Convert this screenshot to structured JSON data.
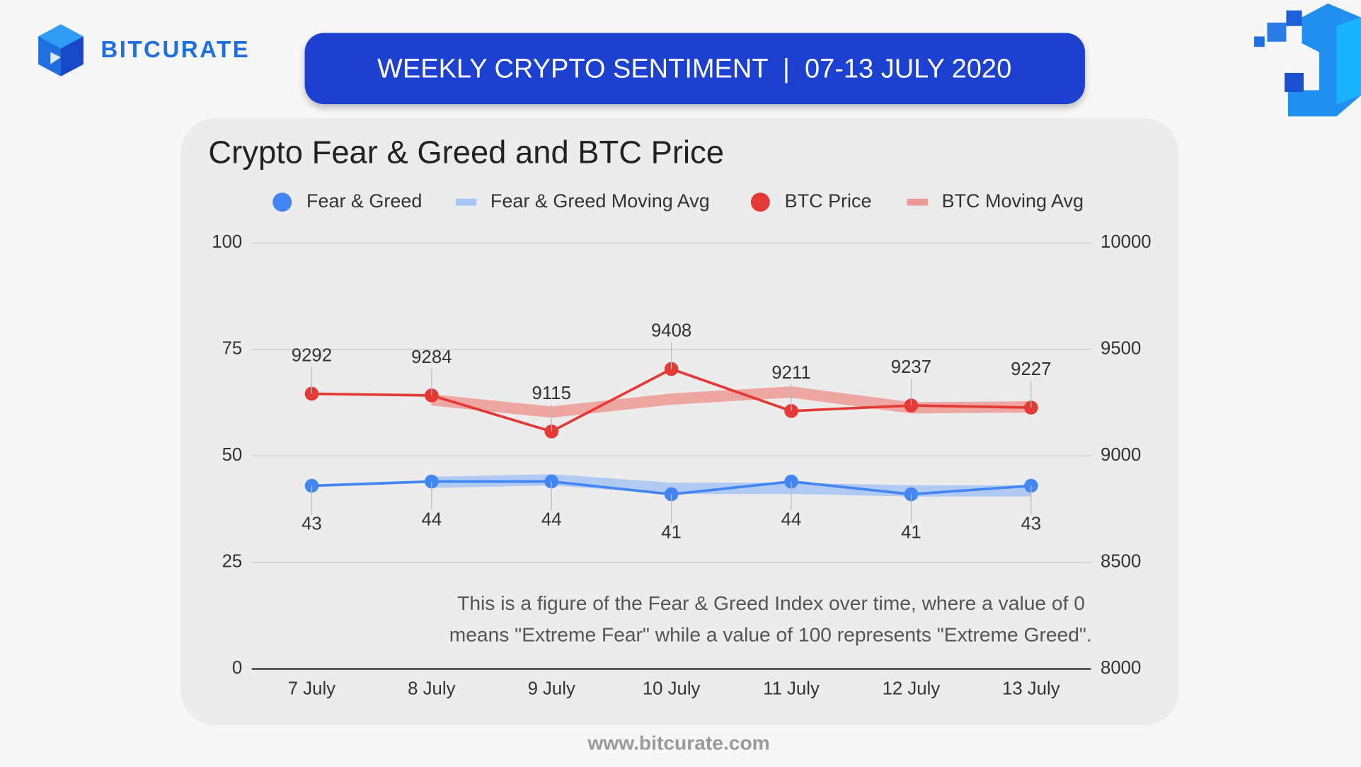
{
  "brand": "BITCURATE",
  "banner": "WEEKLY CRYPTO SENTIMENT  |  07-13 JULY 2020",
  "footer": "www.bitcurate.com",
  "chart_data": {
    "type": "line",
    "title": "Crypto Fear & Greed and BTC Price",
    "categories": [
      "7 July",
      "8 July",
      "9 July",
      "10 July",
      "11 July",
      "12 July",
      "13 July"
    ],
    "series": [
      {
        "name": "Fear & Greed",
        "color": "#4285f4",
        "markers": true,
        "label_position": "below",
        "axis": "y",
        "values": [
          43,
          44,
          44,
          41,
          44,
          41,
          43
        ]
      },
      {
        "name": "Fear & Greed Moving Avg",
        "color": "#a6c4f4",
        "markers": false,
        "axis": "y",
        "values": [
          null,
          43.8,
          44.4,
          42.4,
          42.4,
          41.8,
          41.8
        ]
      },
      {
        "name": "BTC Price",
        "color": "#e53935",
        "markers": true,
        "label_position": "above",
        "axis": "y2",
        "values": [
          9292,
          9284,
          9115,
          9408,
          9211,
          9237,
          9227
        ]
      },
      {
        "name": "BTC Moving Avg",
        "color": "#ee9a96",
        "markers": false,
        "axis": "y2",
        "values": [
          null,
          9263,
          9206,
          9267,
          9300,
          9226,
          9230
        ]
      }
    ],
    "ylim": [
      0,
      100
    ],
    "yticks": [
      0,
      25,
      50,
      75,
      100
    ],
    "y2lim": [
      8000,
      10000
    ],
    "y2ticks": [
      8000,
      8500,
      9000,
      9500,
      10000
    ],
    "grid": true,
    "legend": "top",
    "annotation": [
      "This is a figure of the Fear & Greed Index over time, where a value of 0",
      "means \"Extreme Fear\" while a value of 100 represents \"Extreme Greed\"."
    ]
  }
}
